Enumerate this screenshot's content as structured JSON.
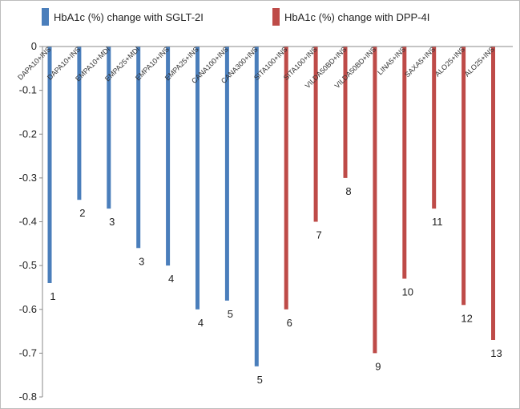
{
  "chart_data": {
    "type": "bar",
    "orientation": "vertical",
    "ylim": [
      -0.8,
      0
    ],
    "yticks": [
      0,
      -0.1,
      -0.2,
      -0.3,
      -0.4,
      -0.5,
      -0.6,
      -0.7,
      -0.8
    ],
    "ytick_labels": [
      "0",
      "-0.1",
      "-0.2",
      "-0.3",
      "-0.4",
      "-0.5",
      "-0.6",
      "-0.7",
      "-0.8"
    ],
    "grid": false,
    "legend_position": "top",
    "categories": [
      "DAPA10+INS",
      "DAPA10+INS",
      "EMPA10+MDI",
      "EMPA25+MDI",
      "EMPA10+INS",
      "EMPA25+INS",
      "CANA100+INS",
      "CANA300+INS",
      "SITA100+INS",
      "SITA100+INS",
      "VILDA50BD+INS",
      "VILDA50BD+INS",
      "LINA5+INS",
      "SAXA5+INS",
      "ALO25+INS",
      "ALO25+INS"
    ],
    "values": [
      -0.54,
      -0.35,
      -0.37,
      -0.46,
      -0.5,
      -0.6,
      -0.58,
      -0.73,
      -0.6,
      -0.4,
      -0.3,
      -0.7,
      -0.53,
      -0.37,
      -0.59,
      -0.67
    ],
    "data_labels": [
      "1",
      "2",
      "3",
      "3",
      "4",
      "4",
      "5",
      "5",
      "6",
      "7",
      "8",
      "9",
      "10",
      "11",
      "12",
      "13"
    ],
    "series_index": [
      0,
      0,
      0,
      0,
      0,
      0,
      0,
      0,
      1,
      1,
      1,
      1,
      1,
      1,
      1,
      1
    ],
    "series": [
      {
        "name": "HbA1c (%) change with SGLT-2I",
        "color": "#4a7ebb"
      },
      {
        "name": "HbA1c (%) change with DPP-4I",
        "color": "#be4b48"
      }
    ],
    "title": "",
    "xlabel": "",
    "ylabel": ""
  }
}
